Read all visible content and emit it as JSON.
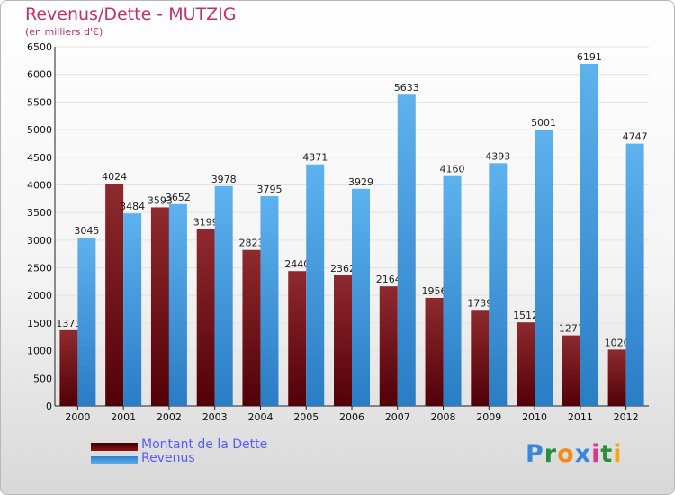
{
  "chart_data": {
    "type": "bar",
    "title": "Revenus/Dette - MUTZIG",
    "subtitle": "(en milliers d'€)",
    "xlabel": "",
    "ylabel": "",
    "ylim": [
      0,
      6500
    ],
    "yticks": [
      0,
      500,
      1000,
      1500,
      2000,
      2500,
      3000,
      3500,
      4000,
      4500,
      5000,
      5500,
      6000,
      6500
    ],
    "grid": true,
    "categories": [
      "2000",
      "2001",
      "2002",
      "2003",
      "2004",
      "2005",
      "2006",
      "2007",
      "2008",
      "2009",
      "2010",
      "2011",
      "2012"
    ],
    "series": [
      {
        "name": "Montant de la Dette",
        "color": "#7a0f17",
        "values": [
          1371,
          4024,
          3593,
          3199,
          2823,
          2440,
          2362,
          2164,
          1956,
          1739,
          1512,
          1277,
          1020
        ]
      },
      {
        "name": "Revenus",
        "color": "#3a9ae8",
        "values": [
          3045,
          3484,
          3652,
          3978,
          3795,
          4371,
          3929,
          5633,
          4160,
          4393,
          5001,
          6191,
          4747
        ]
      }
    ],
    "legend_position": "bottom-left"
  },
  "logo": {
    "letters": [
      "P",
      "r",
      "o",
      "x",
      "i",
      "t",
      "i"
    ],
    "colors": [
      "#3a86d8",
      "#2a8f3a",
      "#f08a1a",
      "#3a86d8",
      "#d63a8a",
      "#2a8f3a",
      "#f0a81a"
    ]
  }
}
